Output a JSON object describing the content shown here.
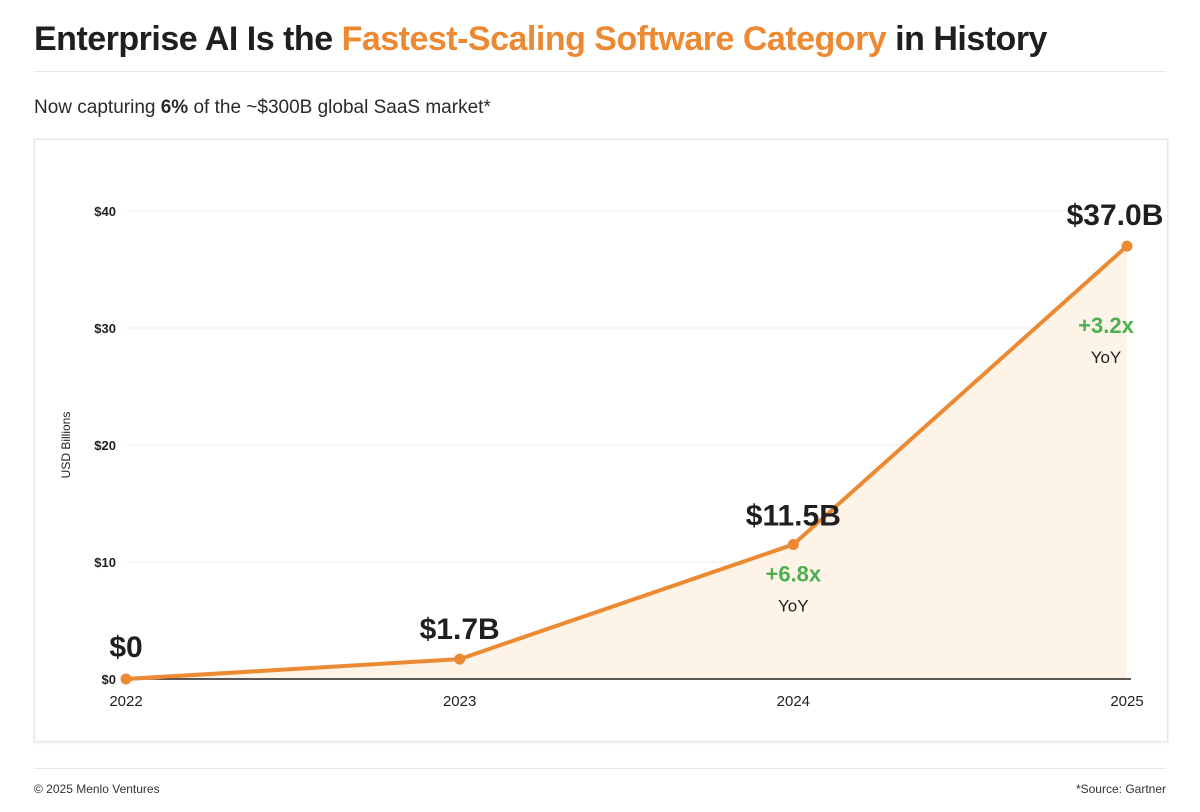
{
  "header": {
    "title_pre": "Enterprise AI Is the ",
    "title_accent": "Fastest-Scaling Software Category",
    "title_post": " in History",
    "subtitle_pre": "Now capturing ",
    "subtitle_bold": "6%",
    "subtitle_post": " of the ~$300B global SaaS market*"
  },
  "colors": {
    "accent": "#ec8a34",
    "fill": "#fdf3e7",
    "growth": "#4caf50",
    "text": "#1f1f1f"
  },
  "chart_data": {
    "type": "area",
    "x": [
      "2022",
      "2023",
      "2024",
      "2025"
    ],
    "values": [
      0,
      1.7,
      11.5,
      37.0
    ],
    "point_labels": [
      "$0",
      "$1.7B",
      "$11.5B",
      "$37.0B"
    ],
    "growth": [
      {
        "x": "2024",
        "value": "+6.8x",
        "unit": "YoY"
      },
      {
        "x": "2025",
        "value": "+3.2x",
        "unit": "YoY"
      }
    ],
    "ylabel": "USD Billions",
    "yticks": [
      0,
      10,
      20,
      30,
      40
    ],
    "ytick_labels": [
      "$0",
      "$10",
      "$20",
      "$30",
      "$40"
    ],
    "ylim": [
      0,
      40
    ],
    "grid": true,
    "legend": "none"
  },
  "footer": {
    "copyright": "© 2025 Menlo Ventures",
    "source": "*Source: Gartner"
  }
}
